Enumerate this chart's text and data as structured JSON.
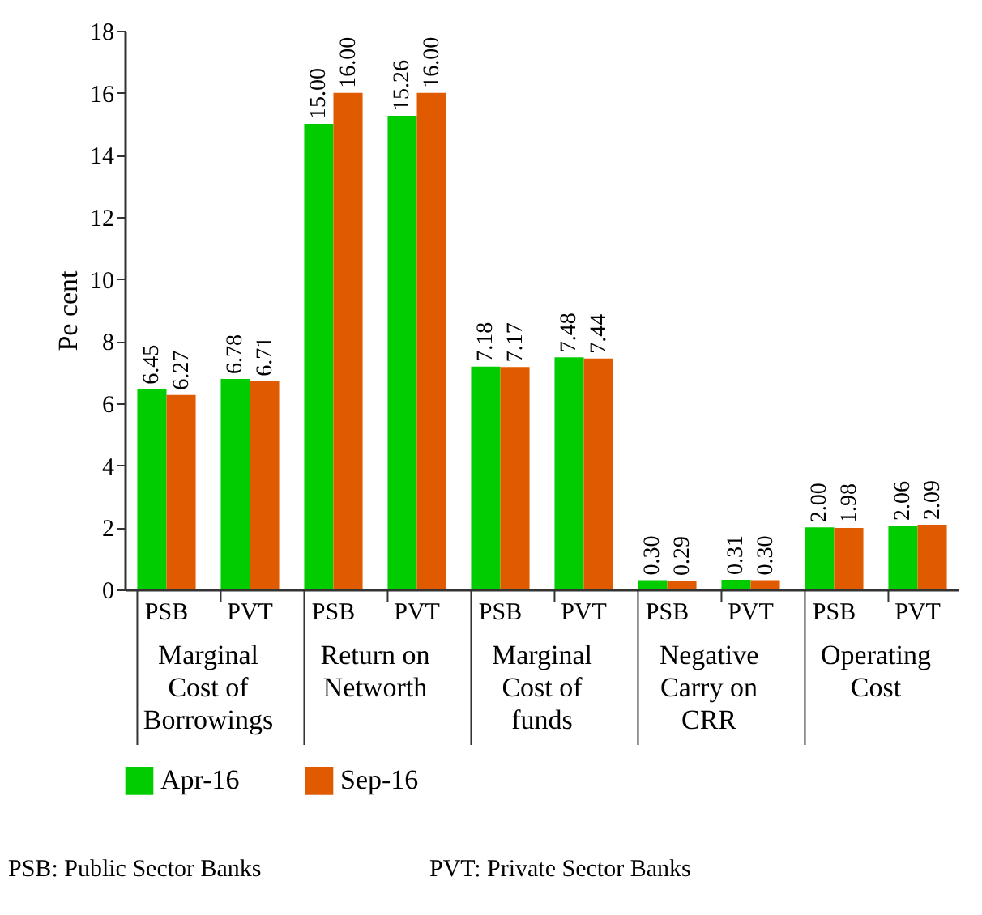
{
  "chart_data": {
    "type": "bar",
    "ylabel": "Pe cent",
    "categories": [
      "PSB",
      "PVT",
      "PSB",
      "PVT",
      "PSB",
      "PVT",
      "PSB",
      "PVT",
      "PSB",
      "PVT"
    ],
    "series": [
      {
        "name": "Apr-16",
        "color": "#00cc00",
        "values": [
          6.45,
          6.78,
          15.0,
          15.26,
          7.18,
          7.48,
          0.3,
          0.31,
          2.0,
          2.06
        ],
        "value_labels": [
          "6.45",
          "6.78",
          "15.00",
          "15.26",
          "7.18",
          "7.48",
          "0.30",
          "0.31",
          "2.00",
          "2.06"
        ]
      },
      {
        "name": "Sep-16",
        "color": "#e05a00",
        "values": [
          6.27,
          6.71,
          16.0,
          16.0,
          7.17,
          7.44,
          0.29,
          0.3,
          1.98,
          2.09
        ],
        "value_labels": [
          "6.27",
          "6.71",
          "16.00",
          "16.00",
          "7.17",
          "7.44",
          "0.29",
          "0.30",
          "1.98",
          "2.09"
        ]
      }
    ],
    "ylim": [
      0,
      18
    ],
    "yticks": [
      0,
      2,
      4,
      6,
      8,
      10,
      12,
      14,
      16,
      18
    ],
    "grid": false,
    "legend": "bottom",
    "annotations": [
      "Marginal\nCost of\nBorrowings",
      "Return on\nNetworth",
      "Marginal\nCost of\nfunds",
      "Negative\nCarry on\nCRR",
      "Operating\nCost",
      "PSB: Public Sector Banks",
      "PVT: Private Sector Banks"
    ]
  }
}
